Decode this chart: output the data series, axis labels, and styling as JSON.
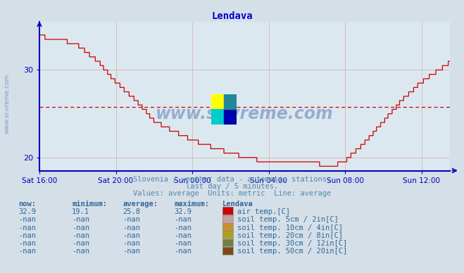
{
  "title": "Lendava",
  "title_color": "#0000cc",
  "bg_color": "#d4dfe8",
  "plot_bg_color": "#dce8f0",
  "line_color": "#cc0000",
  "avg_line_color": "#cc0000",
  "avg_value": 25.8,
  "y_min": 18.5,
  "y_max": 35.5,
  "y_ticks": [
    20,
    30
  ],
  "x_labels": [
    "Sat 16:00",
    "Sat 20:00",
    "Sun 00:00",
    "Sun 04:00",
    "Sun 08:00",
    "Sun 12:00"
  ],
  "grid_color": "#dd9999",
  "axis_color": "#0000bb",
  "watermark": "www.si-vreme.com",
  "left_watermark": "www.si-vreme.com",
  "subtitle1": "Slovenia / weather data - automatic stations.",
  "subtitle2": "last day / 5 minutes.",
  "subtitle3": "Values: average  Units: metric  Line: average",
  "subtitle_color": "#5588aa",
  "legend_headers": [
    "now:",
    "minimum:",
    "average:",
    "maximum:",
    "Lendava"
  ],
  "legend_row1": [
    "32.9",
    "19.1",
    "25.8",
    "32.9",
    "air temp.[C]",
    "#cc0000"
  ],
  "legend_row2": [
    "-nan",
    "-nan",
    "-nan",
    "-nan",
    "soil temp. 5cm / 2in[C]",
    "#c8a0a0"
  ],
  "legend_row3": [
    "-nan",
    "-nan",
    "-nan",
    "-nan",
    "soil temp. 10cm / 4in[C]",
    "#c8922a"
  ],
  "legend_row4": [
    "-nan",
    "-nan",
    "-nan",
    "-nan",
    "soil temp. 20cm / 8in[C]",
    "#b0a020"
  ],
  "legend_row5": [
    "-nan",
    "-nan",
    "-nan",
    "-nan",
    "soil temp. 30cm / 12in[C]",
    "#708040"
  ],
  "legend_row6": [
    "-nan",
    "-nan",
    "-nan",
    "-nan",
    "soil temp. 50cm / 20in[C]",
    "#804818"
  ],
  "legend_color": "#336699",
  "logo_colors": [
    "#ffff00",
    "#00cccc",
    "#0000aa",
    "#208898"
  ]
}
